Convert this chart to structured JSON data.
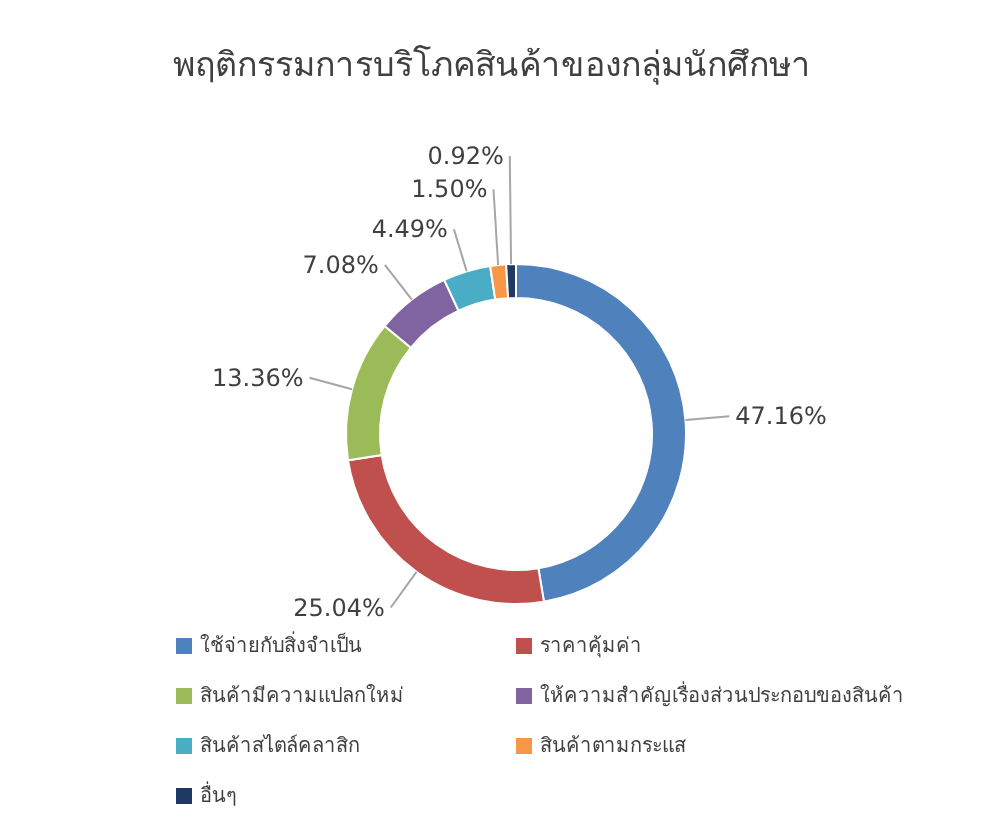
{
  "chart_data": {
    "type": "donut",
    "title": "พฤติกรรมการบริโภคสินค้าของกลุ่มนักศึกษา",
    "categories": [
      "ใช้จ่ายกับสิ่งจำเป็น",
      "ราคาคุ้มค่า",
      "สินค้ามีความแปลกใหม่",
      "ให้ความสำคัญเรื่องส่วนประกอบของสินค้า",
      "สินค้าสไตล์คลาสิก",
      "สินค้าตามกระแส",
      "อื่นๆ"
    ],
    "values": [
      47.16,
      25.04,
      13.36,
      7.08,
      4.49,
      1.5,
      0.92
    ],
    "colors": [
      "#4f81bd",
      "#c0504d",
      "#9bbb59",
      "#8064a2",
      "#4bacc6",
      "#f79646",
      "#1f3864"
    ],
    "value_labels": [
      "47.16%",
      "25.04%",
      "13.36%",
      "7.08%",
      "4.49%",
      "1.50%",
      "0.92%"
    ],
    "legend": "bottom"
  }
}
